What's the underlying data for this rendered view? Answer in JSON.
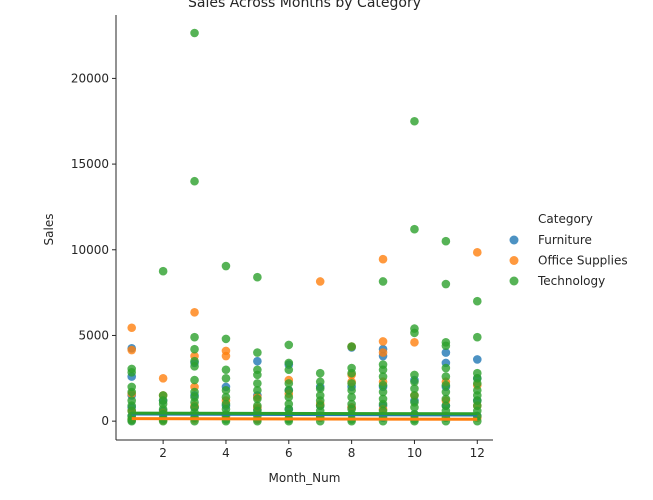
{
  "chart_data": {
    "type": "scatter",
    "title": "Sales Across Months by Category",
    "xlabel": "Month_Num",
    "ylabel": "Sales",
    "xlim": [
      0.5,
      12.5
    ],
    "ylim": [
      -1100,
      23700
    ],
    "xticks": [
      "2",
      "4",
      "6",
      "8",
      "10",
      "12"
    ],
    "yticks": [
      "0",
      "5000",
      "10000",
      "15000",
      "20000"
    ],
    "grid": false,
    "legend": {
      "title": "Category",
      "placement": "right"
    },
    "series": [
      {
        "name": "Furniture",
        "color": "#1f77b4",
        "trend": [
          [
            1,
            420
          ],
          [
            12,
            360
          ]
        ],
        "points": [
          [
            1,
            4250
          ],
          [
            1,
            2600
          ],
          [
            1,
            1500
          ],
          [
            1,
            800
          ],
          [
            1,
            300
          ],
          [
            1,
            50
          ],
          [
            2,
            1200
          ],
          [
            2,
            600
          ],
          [
            2,
            200
          ],
          [
            3,
            3400
          ],
          [
            3,
            1500
          ],
          [
            3,
            800
          ],
          [
            3,
            200
          ],
          [
            4,
            2000
          ],
          [
            4,
            900
          ],
          [
            4,
            300
          ],
          [
            5,
            3500
          ],
          [
            5,
            1500
          ],
          [
            5,
            700
          ],
          [
            5,
            100
          ],
          [
            6,
            3300
          ],
          [
            6,
            1800
          ],
          [
            6,
            700
          ],
          [
            6,
            150
          ],
          [
            7,
            2000
          ],
          [
            7,
            900
          ],
          [
            7,
            200
          ],
          [
            8,
            4300
          ],
          [
            8,
            2000
          ],
          [
            8,
            800
          ],
          [
            9,
            4200
          ],
          [
            9,
            3800
          ],
          [
            9,
            2000
          ],
          [
            9,
            900
          ],
          [
            9,
            200
          ],
          [
            10,
            2400
          ],
          [
            10,
            1200
          ],
          [
            10,
            400
          ],
          [
            11,
            4000
          ],
          [
            11,
            3400
          ],
          [
            11,
            2000
          ],
          [
            11,
            900
          ],
          [
            12,
            3600
          ],
          [
            12,
            2500
          ],
          [
            12,
            1200
          ],
          [
            12,
            300
          ]
        ]
      },
      {
        "name": "Office Supplies",
        "color": "#ff7f0e",
        "trend": [
          [
            1,
            150
          ],
          [
            12,
            110
          ]
        ],
        "points": [
          [
            1,
            5450
          ],
          [
            1,
            4150
          ],
          [
            1,
            1600
          ],
          [
            1,
            600
          ],
          [
            1,
            100
          ],
          [
            2,
            2500
          ],
          [
            2,
            1500
          ],
          [
            2,
            500
          ],
          [
            2,
            50
          ],
          [
            3,
            6350
          ],
          [
            3,
            3800
          ],
          [
            3,
            2000
          ],
          [
            3,
            900
          ],
          [
            3,
            100
          ],
          [
            4,
            4100
          ],
          [
            4,
            3800
          ],
          [
            4,
            1200
          ],
          [
            4,
            300
          ],
          [
            5,
            1400
          ],
          [
            5,
            800
          ],
          [
            5,
            100
          ],
          [
            6,
            2400
          ],
          [
            6,
            1600
          ],
          [
            6,
            400
          ],
          [
            7,
            8150
          ],
          [
            7,
            1000
          ],
          [
            7,
            200
          ],
          [
            8,
            4350
          ],
          [
            8,
            2700
          ],
          [
            8,
            2300
          ],
          [
            8,
            800
          ],
          [
            9,
            9450
          ],
          [
            9,
            4650
          ],
          [
            9,
            4000
          ],
          [
            9,
            2300
          ],
          [
            9,
            700
          ],
          [
            10,
            4600
          ],
          [
            10,
            1500
          ],
          [
            10,
            300
          ],
          [
            11,
            2300
          ],
          [
            11,
            1200
          ],
          [
            11,
            300
          ],
          [
            12,
            9850
          ],
          [
            12,
            2100
          ],
          [
            12,
            900
          ],
          [
            12,
            200
          ]
        ]
      },
      {
        "name": "Technology",
        "color": "#2ca02c",
        "trend": [
          [
            1,
            470
          ],
          [
            12,
            430
          ]
        ],
        "points": [
          [
            1,
            3050
          ],
          [
            1,
            2850
          ],
          [
            1,
            2000
          ],
          [
            1,
            1700
          ],
          [
            1,
            1200
          ],
          [
            1,
            900
          ],
          [
            1,
            600
          ],
          [
            1,
            300
          ],
          [
            1,
            100
          ],
          [
            1,
            0
          ],
          [
            2,
            8750
          ],
          [
            2,
            1500
          ],
          [
            2,
            1200
          ],
          [
            2,
            1000
          ],
          [
            2,
            700
          ],
          [
            2,
            400
          ],
          [
            2,
            100
          ],
          [
            2,
            0
          ],
          [
            3,
            22650
          ],
          [
            3,
            14000
          ],
          [
            3,
            4900
          ],
          [
            3,
            4200
          ],
          [
            3,
            3500
          ],
          [
            3,
            3200
          ],
          [
            3,
            2400
          ],
          [
            3,
            1700
          ],
          [
            3,
            1400
          ],
          [
            3,
            1100
          ],
          [
            3,
            800
          ],
          [
            3,
            500
          ],
          [
            3,
            200
          ],
          [
            3,
            0
          ],
          [
            4,
            9050
          ],
          [
            4,
            4800
          ],
          [
            4,
            3000
          ],
          [
            4,
            2500
          ],
          [
            4,
            1800
          ],
          [
            4,
            1400
          ],
          [
            4,
            1000
          ],
          [
            4,
            700
          ],
          [
            4,
            400
          ],
          [
            4,
            100
          ],
          [
            4,
            0
          ],
          [
            5,
            8400
          ],
          [
            5,
            4000
          ],
          [
            5,
            3000
          ],
          [
            5,
            2700
          ],
          [
            5,
            2200
          ],
          [
            5,
            1800
          ],
          [
            5,
            1300
          ],
          [
            5,
            900
          ],
          [
            5,
            600
          ],
          [
            5,
            300
          ],
          [
            5,
            0
          ],
          [
            6,
            4450
          ],
          [
            6,
            3400
          ],
          [
            6,
            3000
          ],
          [
            6,
            2200
          ],
          [
            6,
            1800
          ],
          [
            6,
            1400
          ],
          [
            6,
            1000
          ],
          [
            6,
            700
          ],
          [
            6,
            400
          ],
          [
            6,
            100
          ],
          [
            6,
            0
          ],
          [
            7,
            2800
          ],
          [
            7,
            2300
          ],
          [
            7,
            1900
          ],
          [
            7,
            1500
          ],
          [
            7,
            1200
          ],
          [
            7,
            900
          ],
          [
            7,
            600
          ],
          [
            7,
            300
          ],
          [
            7,
            0
          ],
          [
            8,
            4350
          ],
          [
            8,
            3100
          ],
          [
            8,
            2800
          ],
          [
            8,
            2200
          ],
          [
            8,
            1800
          ],
          [
            8,
            1400
          ],
          [
            8,
            1000
          ],
          [
            8,
            700
          ],
          [
            8,
            400
          ],
          [
            8,
            100
          ],
          [
            8,
            0
          ],
          [
            9,
            8150
          ],
          [
            9,
            3300
          ],
          [
            9,
            3000
          ],
          [
            9,
            2600
          ],
          [
            9,
            2100
          ],
          [
            9,
            1700
          ],
          [
            9,
            1300
          ],
          [
            9,
            1000
          ],
          [
            9,
            600
          ],
          [
            9,
            300
          ],
          [
            9,
            0
          ],
          [
            10,
            17500
          ],
          [
            10,
            11200
          ],
          [
            10,
            5400
          ],
          [
            10,
            5150
          ],
          [
            10,
            2700
          ],
          [
            10,
            2300
          ],
          [
            10,
            1900
          ],
          [
            10,
            1500
          ],
          [
            10,
            1100
          ],
          [
            10,
            800
          ],
          [
            10,
            400
          ],
          [
            10,
            100
          ],
          [
            10,
            0
          ],
          [
            11,
            10500
          ],
          [
            11,
            8000
          ],
          [
            11,
            4600
          ],
          [
            11,
            4400
          ],
          [
            11,
            3100
          ],
          [
            11,
            2600
          ],
          [
            11,
            2100
          ],
          [
            11,
            1700
          ],
          [
            11,
            1300
          ],
          [
            11,
            900
          ],
          [
            11,
            600
          ],
          [
            11,
            200
          ],
          [
            11,
            0
          ],
          [
            12,
            7000
          ],
          [
            12,
            4900
          ],
          [
            12,
            2800
          ],
          [
            12,
            2500
          ],
          [
            12,
            2200
          ],
          [
            12,
            1800
          ],
          [
            12,
            1500
          ],
          [
            12,
            1200
          ],
          [
            12,
            900
          ],
          [
            12,
            600
          ],
          [
            12,
            300
          ],
          [
            12,
            0
          ]
        ]
      }
    ]
  }
}
